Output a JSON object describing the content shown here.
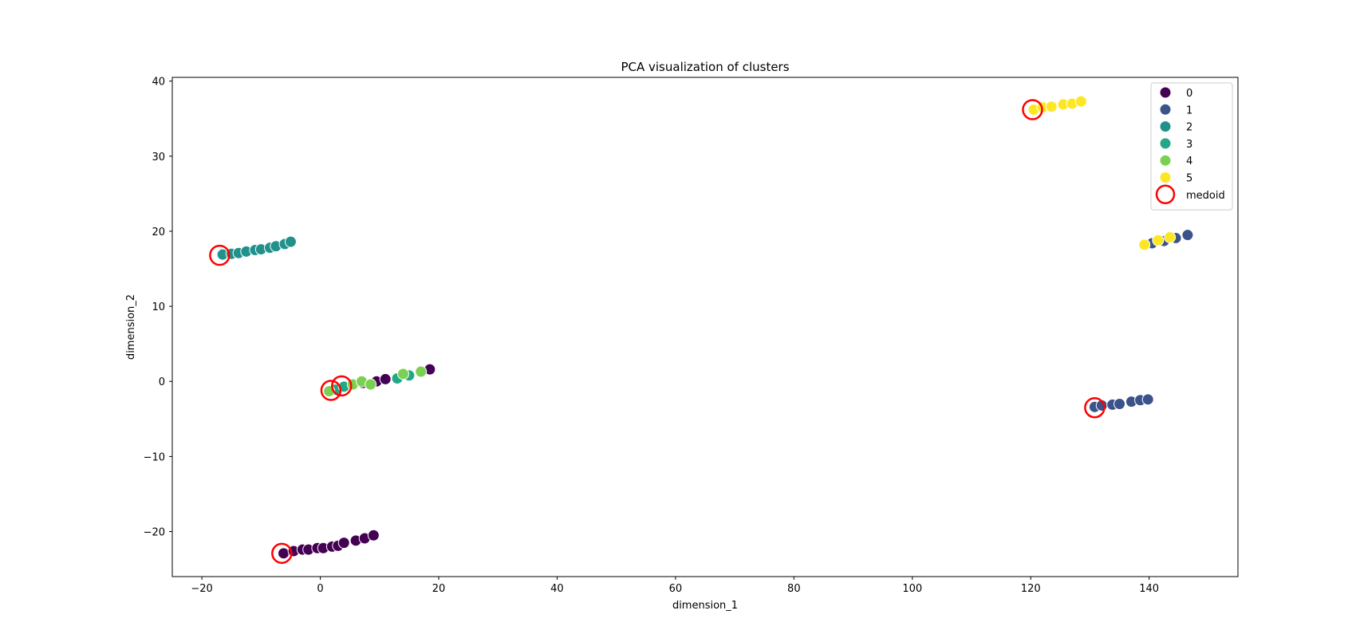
{
  "chart_data": {
    "type": "scatter",
    "title": "PCA visualization of clusters",
    "xlabel": "dimension_1",
    "ylabel": "dimension_2",
    "xlim": [
      -25,
      155
    ],
    "ylim": [
      -26,
      40.5
    ],
    "xticks": [
      -20,
      0,
      20,
      40,
      60,
      80,
      100,
      120,
      140
    ],
    "yticks": [
      -20,
      -10,
      0,
      10,
      20,
      30,
      40
    ],
    "xtick_labels": [
      "−20",
      "0",
      "20",
      "40",
      "60",
      "80",
      "100",
      "120",
      "140"
    ],
    "ytick_labels": [
      "−20",
      "−10",
      "0",
      "10",
      "20",
      "30",
      "40"
    ],
    "grid": false,
    "legend_position": "top-right",
    "legend_title": "",
    "series": [
      {
        "name": "0",
        "color": "#440154",
        "points": [
          [
            -6.2,
            -22.9
          ],
          [
            -4.5,
            -22.6
          ],
          [
            -3,
            -22.4
          ],
          [
            -2,
            -22.4
          ],
          [
            -0.5,
            -22.2
          ],
          [
            0.5,
            -22.2
          ],
          [
            2,
            -22
          ],
          [
            3,
            -21.9
          ],
          [
            4,
            -21.5
          ],
          [
            6,
            -21.2
          ],
          [
            7.5,
            -20.9
          ],
          [
            9,
            -20.5
          ],
          [
            7.2,
            -0.2
          ],
          [
            9.5,
            0
          ],
          [
            11,
            0.3
          ],
          [
            18.5,
            1.6
          ]
        ]
      },
      {
        "name": "1",
        "color": "#3b528b",
        "points": [
          [
            130.8,
            -3.4
          ],
          [
            132,
            -3.2
          ],
          [
            133.8,
            -3.1
          ],
          [
            135,
            -3
          ],
          [
            137,
            -2.7
          ],
          [
            138.5,
            -2.5
          ],
          [
            139.8,
            -2.4
          ],
          [
            140.5,
            18.4
          ],
          [
            142.5,
            18.7
          ],
          [
            144.5,
            19.1
          ],
          [
            146.5,
            19.5
          ]
        ]
      },
      {
        "name": "2",
        "color": "#21918c",
        "points": [
          [
            -16.5,
            16.9
          ],
          [
            -15,
            17
          ],
          [
            -13.8,
            17.1
          ],
          [
            -12.5,
            17.3
          ],
          [
            -11,
            17.5
          ],
          [
            -10,
            17.6
          ],
          [
            -8.5,
            17.8
          ],
          [
            -7.5,
            18
          ],
          [
            -6,
            18.3
          ],
          [
            -5,
            18.6
          ]
        ]
      },
      {
        "name": "3",
        "color": "#22a884",
        "points": [
          [
            2.5,
            -1.1
          ],
          [
            4,
            -0.7
          ],
          [
            13,
            0.4
          ],
          [
            15,
            0.8
          ]
        ]
      },
      {
        "name": "4",
        "color": "#7ad151",
        "points": [
          [
            1.5,
            -1.3
          ],
          [
            5.5,
            -0.4
          ],
          [
            7,
            0
          ],
          [
            8.5,
            -0.4
          ],
          [
            14,
            1
          ],
          [
            17,
            1.3
          ]
        ]
      },
      {
        "name": "5",
        "color": "#fde725",
        "points": [
          [
            120.5,
            36.2
          ],
          [
            122,
            36.5
          ],
          [
            123.5,
            36.6
          ],
          [
            125.5,
            36.9
          ],
          [
            127,
            37
          ],
          [
            128.5,
            37.3
          ],
          [
            139.2,
            18.2
          ],
          [
            141.5,
            18.8
          ],
          [
            143.5,
            19.2
          ]
        ]
      }
    ],
    "medoids": {
      "name": "medoid",
      "color": "#ff0000",
      "points": [
        [
          -17,
          16.8
        ],
        [
          -6.5,
          -22.9
        ],
        [
          1.8,
          -1.2
        ],
        [
          3.6,
          -0.6
        ],
        [
          120.3,
          36.2
        ],
        [
          130.8,
          -3.5
        ]
      ]
    }
  }
}
